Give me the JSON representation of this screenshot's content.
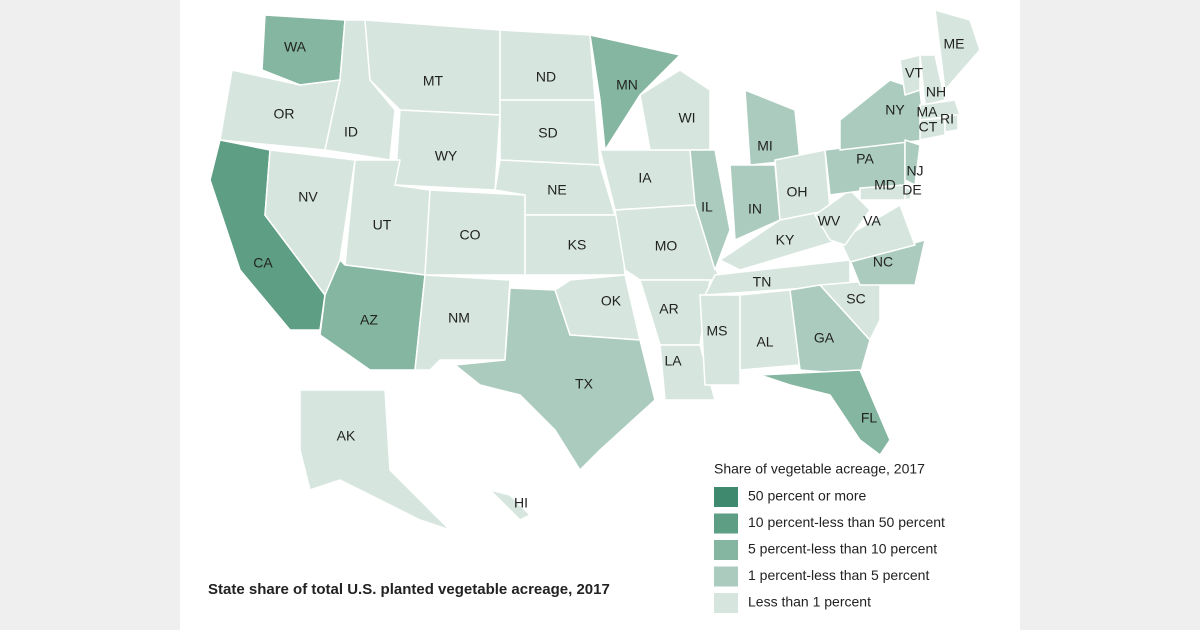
{
  "caption": "State share of total U.S. planted vegetable acreage, 2017",
  "legend": {
    "title": "Share of vegetable acreage, 2017",
    "items": [
      {
        "label": "50 percent or more",
        "color": "#3f8a6f"
      },
      {
        "label": "10 percent-less than 50 percent",
        "color": "#5e9e85"
      },
      {
        "label": "5 percent-less than 10 percent",
        "color": "#84b6a1"
      },
      {
        "label": "1 percent-less than 5 percent",
        "color": "#abcbbe"
      },
      {
        "label": "Less than 1 percent",
        "color": "#d6e6de"
      }
    ]
  },
  "states": [
    {
      "label": "WA",
      "category": 2
    },
    {
      "label": "OR",
      "category": 4
    },
    {
      "label": "CA",
      "category": 1
    },
    {
      "label": "NV",
      "category": 4
    },
    {
      "label": "ID",
      "category": 4
    },
    {
      "label": "MT",
      "category": 4
    },
    {
      "label": "WY",
      "category": 4
    },
    {
      "label": "UT",
      "category": 4
    },
    {
      "label": "CO",
      "category": 4
    },
    {
      "label": "AZ",
      "category": 2
    },
    {
      "label": "NM",
      "category": 4
    },
    {
      "label": "ND",
      "category": 4
    },
    {
      "label": "SD",
      "category": 4
    },
    {
      "label": "NE",
      "category": 4
    },
    {
      "label": "KS",
      "category": 4
    },
    {
      "label": "OK",
      "category": 4
    },
    {
      "label": "TX",
      "category": 3
    },
    {
      "label": "MN",
      "category": 2
    },
    {
      "label": "IA",
      "category": 4
    },
    {
      "label": "MO",
      "category": 4
    },
    {
      "label": "AR",
      "category": 4
    },
    {
      "label": "LA",
      "category": 4
    },
    {
      "label": "WI",
      "category": 4
    },
    {
      "label": "IL",
      "category": 3
    },
    {
      "label": "MI",
      "category": 3
    },
    {
      "label": "IN",
      "category": 3
    },
    {
      "label": "OH",
      "category": 4
    },
    {
      "label": "KY",
      "category": 4
    },
    {
      "label": "TN",
      "category": 4
    },
    {
      "label": "MS",
      "category": 4
    },
    {
      "label": "AL",
      "category": 4
    },
    {
      "label": "GA",
      "category": 3
    },
    {
      "label": "FL",
      "category": 2
    },
    {
      "label": "SC",
      "category": 4
    },
    {
      "label": "NC",
      "category": 3
    },
    {
      "label": "VA",
      "category": 4
    },
    {
      "label": "WV",
      "category": 4
    },
    {
      "label": "PA",
      "category": 3
    },
    {
      "label": "NY",
      "category": 3
    },
    {
      "label": "NJ",
      "category": 3
    },
    {
      "label": "DE",
      "category": 4
    },
    {
      "label": "MD",
      "category": 4
    },
    {
      "label": "VT",
      "category": 4
    },
    {
      "label": "NH",
      "category": 4
    },
    {
      "label": "MA",
      "category": 4
    },
    {
      "label": "CT",
      "category": 4
    },
    {
      "label": "RI",
      "category": 4
    },
    {
      "label": "ME",
      "category": 4
    },
    {
      "label": "AK",
      "category": 4
    },
    {
      "label": "HI",
      "category": 4
    }
  ]
}
